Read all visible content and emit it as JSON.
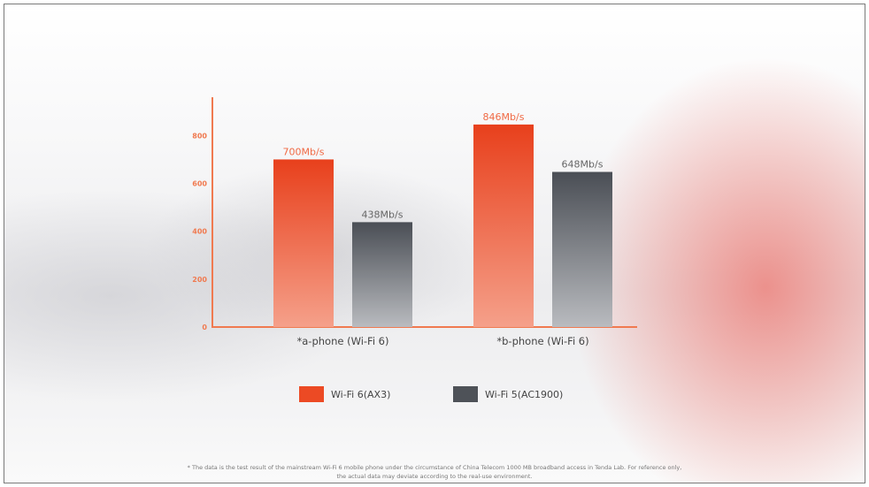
{
  "chart_data": {
    "type": "bar",
    "categories": [
      "*a-phone (Wi-Fi 6)",
      "*b-phone (Wi-Fi 6)"
    ],
    "series": [
      {
        "name": "Wi-Fi 6(AX3)",
        "values": [
          700,
          846
        ],
        "labels": [
          "700Mb/s",
          "846Mb/s"
        ],
        "color": "#ec4a24"
      },
      {
        "name": "Wi-Fi 5(AC1900)",
        "values": [
          438,
          648
        ],
        "labels": [
          "438Mb/s",
          "648Mb/s"
        ],
        "color": "#4e5258"
      }
    ],
    "yticks": [
      0,
      200,
      400,
      600,
      800
    ],
    "ylim": [
      0,
      960
    ],
    "axis_color": "#f07a50",
    "legend_position": "bottom",
    "grid": false
  },
  "footnote": [
    "* The data is the test result of the mainstream Wi-Fi 6 mobile phone under the circumstance of China Telecom 1000 MB broadband access in Tenda Lab. For reference only,",
    "the actual data may deviate according to the real-use environment."
  ]
}
